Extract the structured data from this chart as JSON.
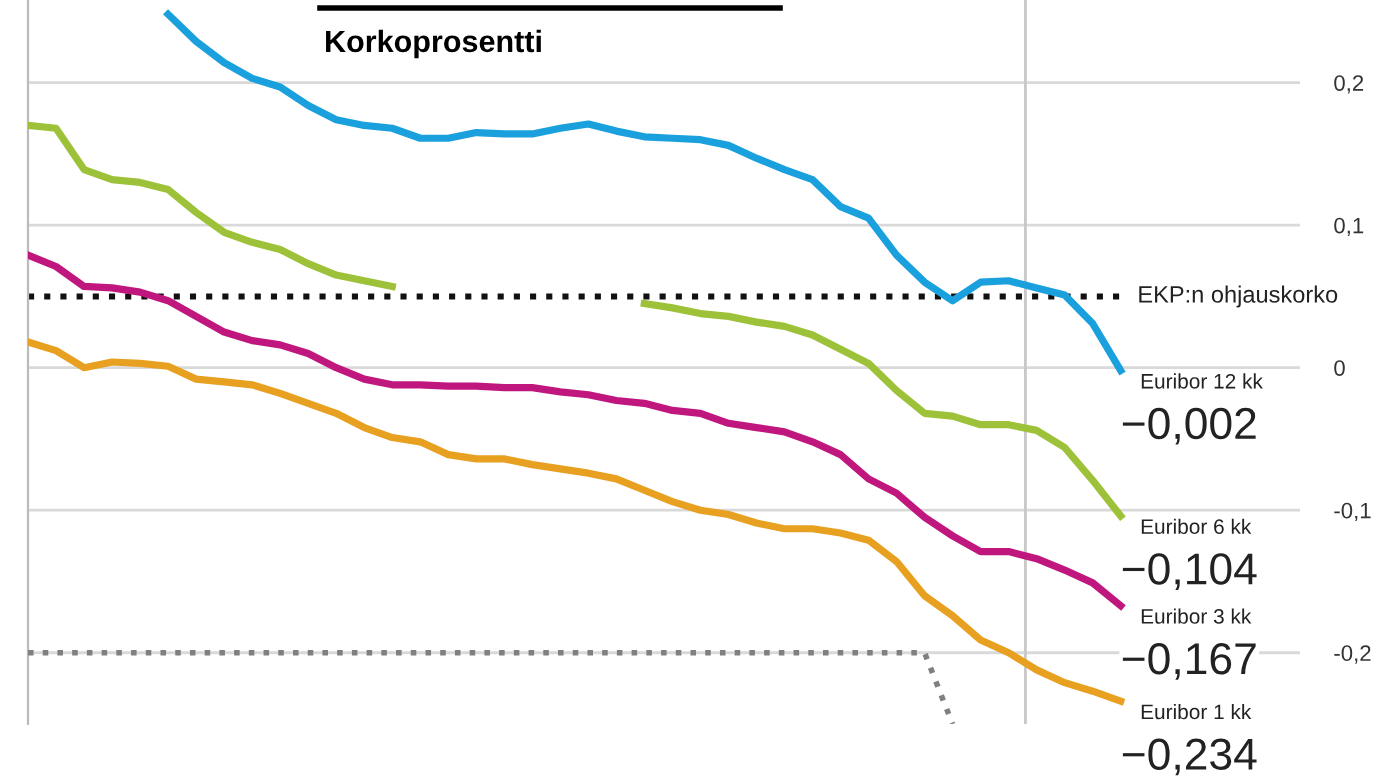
{
  "chart_data": {
    "type": "line",
    "title": "Korkoprosentti",
    "categories": [
      null,
      null,
      null,
      null,
      null,
      null,
      null,
      null,
      null,
      null,
      null,
      null,
      null,
      null,
      null,
      null,
      null,
      null,
      null,
      null,
      null,
      null,
      null,
      null,
      null,
      null,
      null,
      null,
      null,
      null,
      null,
      null,
      null,
      null,
      null,
      null,
      null,
      null,
      null,
      null
    ],
    "series": [
      {
        "name": "Euribor 12 kk",
        "color": "#1aa0dc",
        "values": [
          null,
          null,
          null,
          null,
          null,
          0.248,
          0.229,
          0.214,
          0.203,
          0.197,
          0.184,
          0.174,
          0.17,
          0.168,
          0.161,
          0.161,
          0.165,
          0.164,
          0.164,
          0.168,
          0.171,
          0.166,
          0.162,
          0.161,
          0.16,
          0.156,
          0.147,
          0.139,
          0.132,
          0.113,
          0.105,
          0.079,
          0.06,
          0.047,
          0.06,
          0.061,
          0.056,
          0.051,
          0.031,
          -0.002
        ],
        "value_labels": [
          null,
          null,
          null,
          null,
          null,
          null,
          null,
          null,
          null,
          null,
          null,
          null,
          null,
          null,
          null,
          null,
          null,
          null,
          null,
          null,
          null,
          null,
          null,
          null,
          null,
          null,
          null,
          null,
          null,
          null,
          null,
          null,
          null,
          null,
          null,
          null,
          null,
          null,
          null,
          "−0,002"
        ]
      },
      {
        "name": "Euribor 6 kk",
        "color": "#9dc23a",
        "values": [
          0.17,
          0.168,
          0.139,
          0.132,
          0.13,
          0.125,
          0.109,
          0.095,
          0.088,
          0.083,
          0.073,
          0.065,
          0.061,
          0.057,
          null,
          null,
          null,
          null,
          null,
          null,
          null,
          null,
          0.045,
          0.042,
          0.038,
          0.036,
          0.032,
          0.029,
          0.023,
          0.013,
          0.003,
          -0.016,
          -0.032,
          -0.034,
          -0.04,
          -0.04,
          -0.044,
          -0.056,
          -0.079,
          -0.104
        ],
        "value_labels": [
          null,
          null,
          null,
          null,
          null,
          null,
          null,
          null,
          null,
          null,
          null,
          null,
          null,
          null,
          null,
          null,
          null,
          null,
          null,
          null,
          null,
          null,
          null,
          null,
          null,
          null,
          null,
          null,
          null,
          null,
          null,
          null,
          null,
          null,
          null,
          null,
          null,
          null,
          null,
          "−0,104"
        ]
      },
      {
        "name": "Euribor 3 kk",
        "color": "#c0177f",
        "values": [
          0.079,
          0.071,
          0.057,
          0.056,
          0.053,
          0.047,
          0.036,
          0.025,
          0.019,
          0.016,
          0.01,
          0.0,
          -0.008,
          -0.012,
          -0.012,
          -0.013,
          -0.013,
          -0.014,
          -0.014,
          -0.017,
          -0.019,
          -0.023,
          -0.025,
          -0.03,
          -0.032,
          -0.039,
          -0.042,
          -0.045,
          -0.052,
          -0.061,
          -0.078,
          -0.088,
          -0.105,
          -0.118,
          -0.129,
          -0.129,
          -0.134,
          -0.142,
          -0.151,
          -0.167
        ],
        "value_labels": [
          null,
          null,
          null,
          null,
          null,
          null,
          null,
          null,
          null,
          null,
          null,
          null,
          null,
          null,
          null,
          null,
          null,
          null,
          null,
          null,
          null,
          null,
          null,
          null,
          null,
          null,
          null,
          null,
          null,
          null,
          null,
          null,
          null,
          null,
          null,
          null,
          null,
          null,
          null,
          "−0,167"
        ]
      },
      {
        "name": "Euribor 1 kk",
        "color": "#e8a020",
        "values": [
          0.018,
          0.012,
          0.0,
          0.004,
          0.003,
          0.001,
          -0.008,
          -0.01,
          -0.012,
          -0.018,
          -0.025,
          -0.032,
          -0.042,
          -0.049,
          -0.052,
          -0.061,
          -0.064,
          -0.064,
          -0.068,
          -0.071,
          -0.074,
          -0.078,
          -0.086,
          -0.094,
          -0.1,
          -0.103,
          -0.109,
          -0.113,
          -0.113,
          -0.116,
          -0.121,
          -0.136,
          -0.16,
          -0.174,
          -0.191,
          -0.2,
          -0.212,
          -0.221,
          -0.227,
          -0.234
        ],
        "value_labels": [
          null,
          null,
          null,
          null,
          null,
          null,
          null,
          null,
          null,
          null,
          null,
          null,
          null,
          null,
          null,
          null,
          null,
          null,
          null,
          null,
          null,
          null,
          null,
          null,
          null,
          null,
          null,
          null,
          null,
          null,
          null,
          null,
          null,
          null,
          null,
          null,
          null,
          null,
          null,
          "−0,234"
        ]
      },
      {
        "color": "#808080",
        "line_style": "dotted",
        "values": [
          -0.2,
          -0.2,
          -0.2,
          -0.2,
          -0.2,
          -0.2,
          -0.2,
          -0.2,
          -0.2,
          -0.2,
          -0.2,
          -0.2,
          -0.2,
          -0.2,
          -0.2,
          -0.2,
          -0.2,
          -0.2,
          -0.2,
          -0.2,
          -0.2,
          -0.2,
          -0.2,
          -0.2,
          -0.2,
          -0.2,
          -0.2,
          -0.2,
          -0.2,
          -0.2,
          -0.2,
          -0.2,
          -0.2,
          -0.25,
          null,
          null,
          null,
          null,
          null,
          null
        ]
      }
    ],
    "ref_lines": [
      {
        "axis": "y",
        "value": 0.05,
        "label": "EKP:n ohjauskorko",
        "color": "#111111",
        "line_style": "dotted"
      }
    ],
    "ylim": [
      -0.25,
      0.258
    ],
    "yticks": [
      {
        "value": 0.2,
        "label": "0,2"
      },
      {
        "value": 0.1,
        "label": "0,1"
      },
      {
        "value": 0,
        "label": "0"
      },
      {
        "value": -0.1,
        "label": "-0,1"
      },
      {
        "value": -0.2,
        "label": "-0,2"
      }
    ],
    "grid": "y",
    "legend": false,
    "marker": "none",
    "line_style": "solid",
    "tick_labels": "y"
  }
}
